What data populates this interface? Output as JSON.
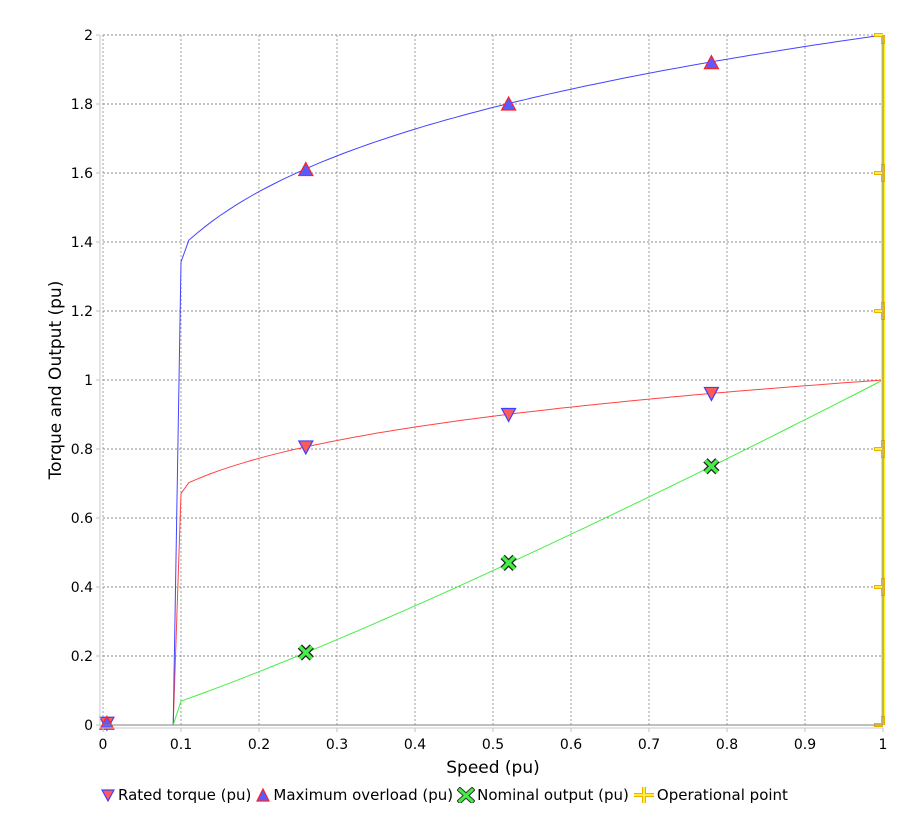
{
  "chart_data": {
    "type": "line",
    "title": "",
    "xlabel": "Speed (pu)",
    "ylabel": "Torque and Output (pu)",
    "xlim": [
      0,
      1
    ],
    "ylim": [
      0,
      2
    ],
    "grid": true,
    "legend_position": "bottom",
    "x_ticks": [
      "0",
      "0.1",
      "0.2",
      "0.3",
      "0.4",
      "0.5",
      "0.6",
      "0.7",
      "0.8",
      "0.9",
      "1"
    ],
    "y_ticks": [
      "0",
      "0.2",
      "0.4",
      "0.6",
      "0.8",
      "1",
      "1.2",
      "1.4",
      "1.6",
      "1.8",
      "2"
    ],
    "series": [
      {
        "name": "Rated torque (pu)",
        "color": "#ff4444",
        "marker": "triangle-down",
        "marker_fill": "#ff5a5a",
        "marker_edge": "#4040ff",
        "x": [
          0,
          0.09,
          0.1,
          0.15,
          0.2,
          0.26,
          0.3,
          0.4,
          0.52,
          0.6,
          0.7,
          0.78,
          0.9,
          1.0
        ],
        "values": [
          0,
          0,
          0.67,
          0.74,
          0.77,
          0.806,
          0.825,
          0.864,
          0.9,
          0.921,
          0.944,
          0.961,
          0.983,
          1.0
        ],
        "markers_at": [
          [
            0.005,
            0.005
          ],
          [
            0.26,
            0.806
          ],
          [
            0.52,
            0.9
          ],
          [
            0.78,
            0.961
          ]
        ]
      },
      {
        "name": "Maximum overload (pu)",
        "color": "#4444ff",
        "marker": "triangle-up",
        "marker_fill": "#5a5aff",
        "marker_edge": "#ff2020",
        "x": [
          0,
          0.09,
          0.1,
          0.15,
          0.2,
          0.26,
          0.3,
          0.4,
          0.52,
          0.6,
          0.7,
          0.78,
          0.9,
          1.0
        ],
        "values": [
          0,
          0,
          1.34,
          1.48,
          1.54,
          1.61,
          1.65,
          1.73,
          1.8,
          1.84,
          1.89,
          1.92,
          1.97,
          2.0
        ],
        "markers_at": [
          [
            0.005,
            0.005
          ],
          [
            0.26,
            1.61
          ],
          [
            0.52,
            1.8
          ],
          [
            0.78,
            1.92
          ]
        ]
      },
      {
        "name": "Nominal output (pu)",
        "color": "#44ee44",
        "marker": "x-cross",
        "marker_fill": "#44ee44",
        "marker_edge": "#000000",
        "x": [
          0,
          0.09,
          0.1,
          0.2,
          0.26,
          0.3,
          0.4,
          0.52,
          0.6,
          0.7,
          0.78,
          0.9,
          1.0
        ],
        "values": [
          0,
          0,
          0.067,
          0.154,
          0.21,
          0.247,
          0.346,
          0.47,
          0.553,
          0.661,
          0.75,
          0.885,
          1.0
        ],
        "markers_at": [
          [
            0.26,
            0.21
          ],
          [
            0.52,
            0.47
          ],
          [
            0.78,
            0.75
          ]
        ]
      },
      {
        "name": "Operational point",
        "color": "#ffee22",
        "marker": "plus",
        "marker_fill": "#ffee44",
        "marker_edge": "#f0b000",
        "x": [
          1,
          1
        ],
        "values": [
          0,
          2
        ],
        "markers_at": [
          [
            1,
            0
          ],
          [
            1,
            0.4
          ],
          [
            1,
            0.8
          ],
          [
            1,
            1.2
          ],
          [
            1,
            1.6
          ],
          [
            1,
            2.0
          ]
        ]
      }
    ]
  },
  "legend": {
    "items": [
      {
        "label": "Rated torque (pu)",
        "icon": "triangle-down-icon"
      },
      {
        "label": "Maximum overload (pu)",
        "icon": "triangle-up-icon"
      },
      {
        "label": "Nominal output (pu)",
        "icon": "x-cross-icon"
      },
      {
        "label": "Operational point",
        "icon": "plus-icon"
      }
    ]
  }
}
